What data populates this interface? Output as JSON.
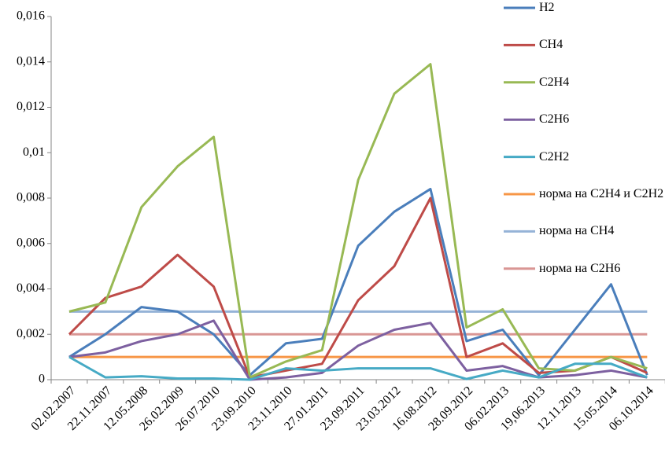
{
  "chart_data": {
    "type": "line",
    "categories": [
      "02.02.2007",
      "22.11.2007",
      "12.05.2008",
      "26.02.2009",
      "26.07.2010",
      "23.09.2010",
      "23.11.2010",
      "27.01.2011",
      "23.09.2011",
      "23.03.2012",
      "16.08.2012",
      "28.09.2012",
      "06.02.2013",
      "19,06.2013",
      "12.11.2013",
      "15.05.2014",
      "06.10.2014"
    ],
    "series": [
      {
        "name": "H2",
        "color": "#4a7ebb",
        "values": [
          0.001,
          0.002,
          0.0032,
          0.003,
          0.002,
          0.0002,
          0.0016,
          0.0018,
          0.0059,
          0.0074,
          0.0084,
          0.0017,
          0.0022,
          0.0002,
          0.0022,
          0.0042,
          0.0002
        ]
      },
      {
        "name": "CH4",
        "color": "#be4b48",
        "values": [
          0.002,
          0.0036,
          0.0041,
          0.0055,
          0.0041,
          0.0001,
          0.0004,
          0.0007,
          0.0035,
          0.005,
          0.008,
          0.001,
          0.0016,
          0.0003,
          0.0004,
          0.001,
          0.0003
        ]
      },
      {
        "name": "C2H4",
        "color": "#98b954",
        "values": [
          0.003,
          0.0034,
          0.0076,
          0.0094,
          0.0107,
          0.0001,
          0.0008,
          0.0013,
          0.0088,
          0.0126,
          0.0139,
          0.0023,
          0.0031,
          0.0005,
          0.0004,
          0.001,
          0.0005
        ]
      },
      {
        "name": "C2H6",
        "color": "#7d60a0",
        "values": [
          0.001,
          0.0012,
          0.0017,
          0.002,
          0.0026,
          0,
          0.0001,
          0.0003,
          0.0015,
          0.0022,
          0.0025,
          0.0004,
          0.0006,
          0.0001,
          0.0002,
          0.0004,
          0.0001
        ]
      },
      {
        "name": "C2H2",
        "color": "#46aac5",
        "values": [
          0.001,
          0.0001,
          0.00015,
          5e-05,
          5e-05,
          0,
          0.0005,
          0.0004,
          0.0005,
          0.0005,
          0.0005,
          3e-05,
          0.0004,
          0.0001,
          0.0007,
          0.0007,
          0.0001
        ]
      },
      {
        "name": "норма на C2H4 и C2H2",
        "color": "#f79646",
        "values": [
          0.001,
          0.001,
          0.001,
          0.001,
          0.001,
          0.001,
          0.001,
          0.001,
          0.001,
          0.001,
          0.001,
          0.001,
          0.001,
          0.001,
          0.001,
          0.001,
          0.001
        ]
      },
      {
        "name": "норма на CH4",
        "color": "#95b3d7",
        "values": [
          0.003,
          0.003,
          0.003,
          0.003,
          0.003,
          0.003,
          0.003,
          0.003,
          0.003,
          0.003,
          0.003,
          0.003,
          0.003,
          0.003,
          0.003,
          0.003,
          0.003
        ]
      },
      {
        "name": "норма на C2H6",
        "color": "#d99694",
        "values": [
          0.002,
          0.002,
          0.002,
          0.002,
          0.002,
          0.002,
          0.002,
          0.002,
          0.002,
          0.002,
          0.002,
          0.002,
          0.002,
          0.002,
          0.002,
          0.002,
          0.002
        ]
      }
    ],
    "ylim": [
      0,
      0.016
    ],
    "yticks": [
      0,
      {
        "value": 0.002,
        "label": "0,002"
      },
      {
        "value": 0.004,
        "label": "0,004"
      },
      {
        "value": 0.006,
        "label": "0,006"
      },
      {
        "value": 0.008,
        "label": "0,008"
      },
      {
        "value": 0.01,
        "label": "0,01"
      },
      {
        "value": 0.012,
        "label": "0,012"
      },
      {
        "value": 0.014,
        "label": "0,014"
      },
      {
        "value": 0.016,
        "label": "0,016"
      }
    ],
    "legend": "right"
  }
}
